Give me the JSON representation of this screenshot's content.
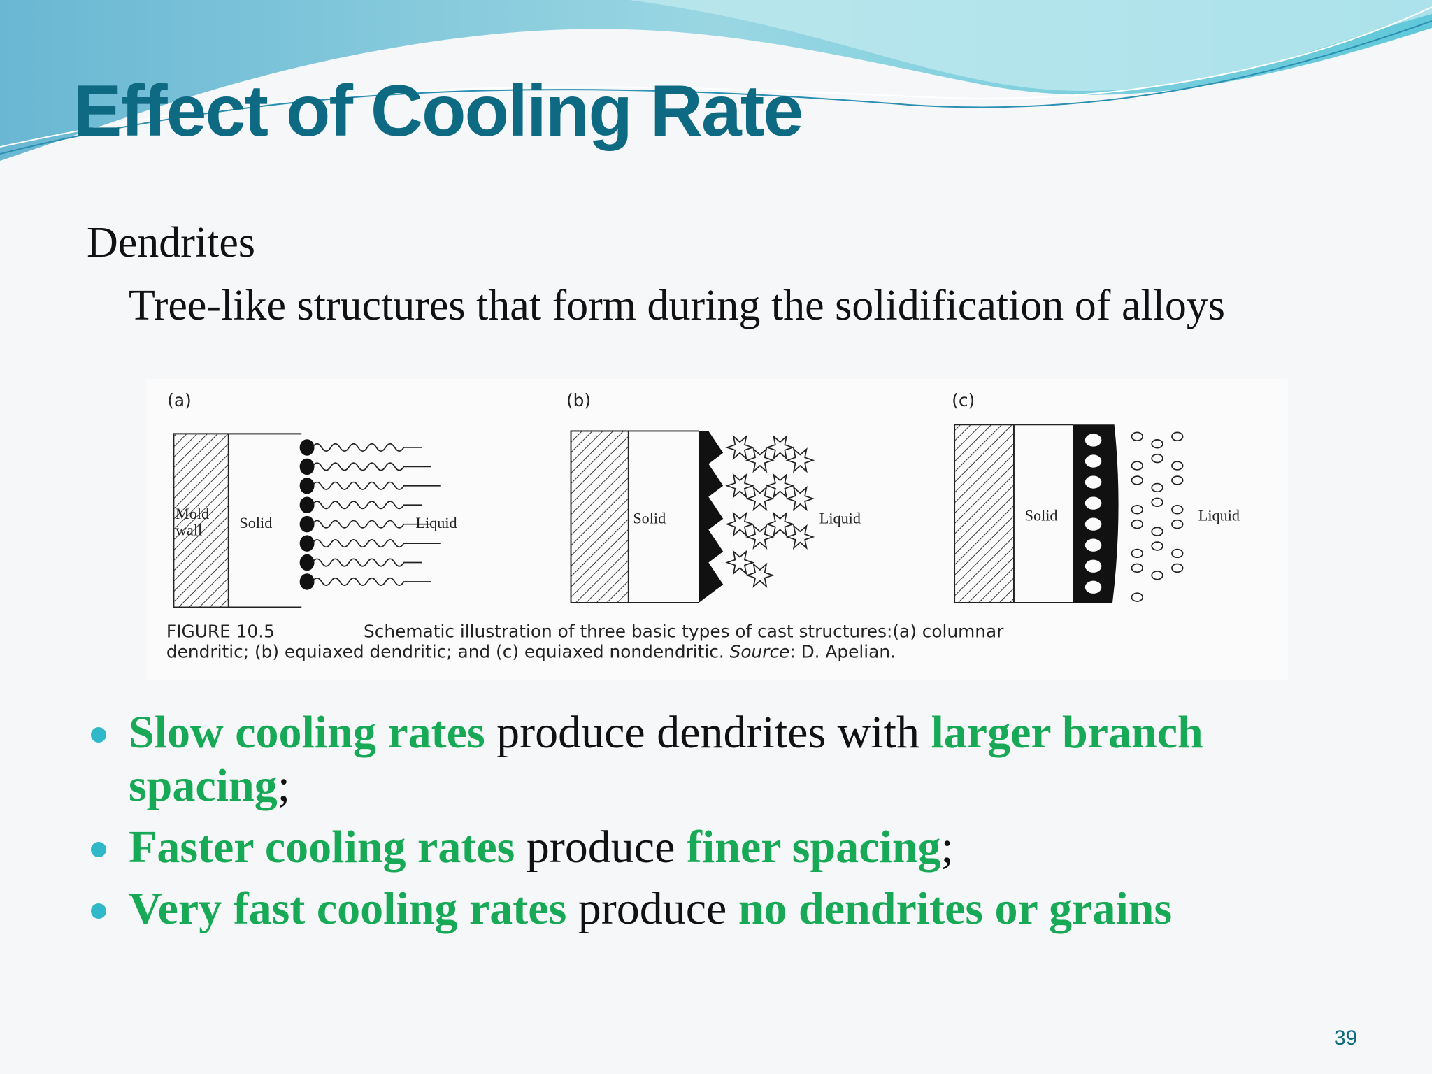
{
  "header": {
    "title": "Effect of Cooling Rate"
  },
  "body": {
    "heading": "Dendrites",
    "definition": "Tree-like structures that form during the solidification of alloys",
    "figure": {
      "panels": [
        {
          "tag": "(a)",
          "labels": [
            "Mold",
            "wall",
            "Solid",
            "Liquid"
          ]
        },
        {
          "tag": "(b)",
          "labels": [
            "Solid",
            "Liquid"
          ]
        },
        {
          "tag": "(c)",
          "labels": [
            "Solid",
            "Liquid"
          ]
        }
      ],
      "caption": {
        "number": "FIGURE 10.5",
        "line1": "Schematic illustration of three basic types of cast structures:(a) columnar",
        "line2": "dendritic; (b) equiaxed dendritic; and (c) equiaxed nondendritic.",
        "source_label": "Source",
        "source": ": D. Apelian."
      }
    },
    "bullets": [
      [
        {
          "text": "Slow cooling rates",
          "emphasis": true
        },
        {
          "text": " produce dendrites with ",
          "emphasis": false
        },
        {
          "text": "larger branch spacing",
          "emphasis": true
        },
        {
          "text": ";",
          "emphasis": false
        }
      ],
      [
        {
          "text": "Faster cooling rates",
          "emphasis": true
        },
        {
          "text": " produce ",
          "emphasis": false
        },
        {
          "text": "finer spacing",
          "emphasis": true
        },
        {
          "text": ";",
          "emphasis": false
        }
      ],
      [
        {
          "text": "Very fast cooling rates",
          "emphasis": true
        },
        {
          "text": " produce ",
          "emphasis": false
        },
        {
          "text": "no dendrites or grains",
          "emphasis": true
        }
      ]
    ]
  },
  "footer": {
    "page_number": "39"
  }
}
